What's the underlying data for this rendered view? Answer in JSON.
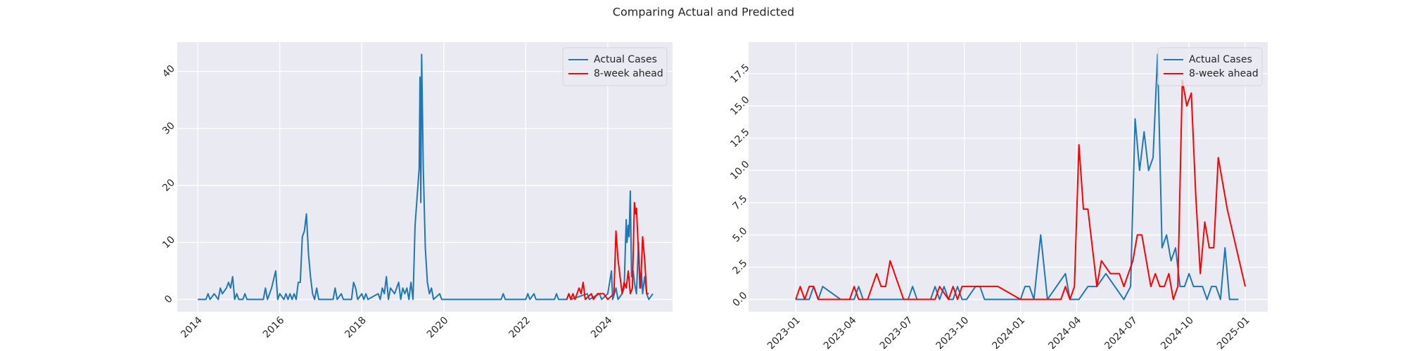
{
  "title": "Comparing Actual and Predicted",
  "chart_data": [
    {
      "type": "line",
      "xlim": [
        2013.5,
        2025.58
      ],
      "xticks": [
        2014,
        2016,
        2018,
        2020,
        2022,
        2024
      ],
      "ylim": [
        -2.15,
        45.15
      ],
      "yticks": [
        0,
        10,
        20,
        30,
        40
      ],
      "grid": true,
      "legend": "upper right",
      "series": [
        {
          "name": "Actual Cases",
          "color": "#1f77b4",
          "x": [
            2014.0,
            2014.2,
            2014.25,
            2014.3,
            2014.4,
            2014.5,
            2014.55,
            2014.6,
            2014.7,
            2014.75,
            2014.8,
            2014.85,
            2014.9,
            2014.95,
            2015.0,
            2015.1,
            2015.15,
            2015.2,
            2015.6,
            2015.65,
            2015.7,
            2015.75,
            2015.8,
            2015.9,
            2015.95,
            2016.0,
            2016.1,
            2016.15,
            2016.2,
            2016.25,
            2016.3,
            2016.35,
            2016.4,
            2016.45,
            2016.5,
            2016.55,
            2016.6,
            2016.65,
            2016.7,
            2016.75,
            2016.8,
            2016.85,
            2016.9,
            2016.95,
            2017.3,
            2017.35,
            2017.4,
            2017.5,
            2017.55,
            2017.75,
            2017.8,
            2017.85,
            2017.9,
            2018.0,
            2018.05,
            2018.1,
            2018.15,
            2018.4,
            2018.45,
            2018.5,
            2018.55,
            2018.6,
            2018.65,
            2018.7,
            2018.8,
            2018.9,
            2018.95,
            2019.0,
            2019.05,
            2019.1,
            2019.15,
            2019.2,
            2019.25,
            2019.3,
            2019.35,
            2019.4,
            2019.42,
            2019.44,
            2019.46,
            2019.5,
            2019.55,
            2019.6,
            2019.65,
            2019.7,
            2019.75,
            2019.9,
            2019.95,
            2021.4,
            2021.45,
            2021.5,
            2022.0,
            2022.05,
            2022.1,
            2022.2,
            2022.25,
            2022.7,
            2022.75,
            2022.8,
            2023.0,
            2023.05,
            2023.1,
            2023.5,
            2023.55,
            2023.8,
            2023.85,
            2024.0,
            2024.09,
            2024.12,
            2024.2,
            2024.25,
            2024.35,
            2024.4,
            2024.45,
            2024.47,
            2024.5,
            2024.52,
            2024.55,
            2024.58,
            2024.62,
            2024.65,
            2024.7,
            2024.75,
            2024.78,
            2024.82,
            2024.85,
            2024.9,
            2024.95,
            2025.0,
            2025.1
          ],
          "values": [
            0,
            0,
            1,
            0,
            1,
            0,
            2,
            1,
            2,
            3,
            2,
            4,
            0,
            1,
            0,
            0,
            1,
            0,
            0,
            2,
            0,
            1,
            2,
            5,
            0,
            1,
            0,
            1,
            0,
            1,
            0,
            1,
            0,
            3,
            3,
            11,
            12,
            15,
            8,
            4,
            1,
            0,
            2,
            0,
            0,
            2,
            0,
            1,
            0,
            0,
            3,
            2,
            0,
            1,
            0,
            1,
            0,
            1,
            0,
            2,
            1,
            4,
            0,
            2,
            1,
            3,
            0,
            2,
            1,
            2,
            0,
            3,
            0,
            13,
            18,
            23,
            39,
            17,
            43,
            23,
            9,
            3,
            1,
            2,
            0,
            1,
            0,
            0,
            1,
            0,
            0,
            1,
            0,
            1,
            0,
            0,
            1,
            0,
            0,
            1,
            0,
            1,
            0,
            1,
            0,
            1,
            5,
            0,
            2,
            0,
            1,
            2,
            14,
            10,
            13,
            11,
            19,
            4,
            5,
            3,
            1,
            10,
            2,
            5,
            1,
            4,
            1,
            0,
            1
          ]
        },
        {
          "name": "8-week ahead",
          "color": "#ff0000",
          "x": [
            2023.0,
            2023.05,
            2023.1,
            2023.15,
            2023.2,
            2023.25,
            2023.3,
            2023.35,
            2023.4,
            2023.45,
            2023.6,
            2023.65,
            2023.75,
            2023.9,
            2024.0,
            2024.15,
            2024.2,
            2024.25,
            2024.3,
            2024.35,
            2024.4,
            2024.45,
            2024.5,
            2024.55,
            2024.6,
            2024.65,
            2024.68,
            2024.7,
            2024.75,
            2024.8,
            2024.85,
            2024.9,
            2024.95,
            2025.0
          ],
          "values": [
            0,
            1,
            0,
            1,
            0,
            1,
            2,
            1,
            3,
            0,
            1,
            0,
            1,
            1,
            0,
            1,
            12,
            7,
            4,
            1,
            3,
            2,
            5,
            1,
            2,
            17,
            15,
            16,
            8,
            2,
            11,
            7,
            1,
            1
          ]
        }
      ]
    },
    {
      "type": "line",
      "xlim": [
        2022.79,
        2025.1
      ],
      "xticks": [
        {
          "value": 2023.0,
          "label": "2023-01"
        },
        {
          "value": 2023.25,
          "label": "2023-04"
        },
        {
          "value": 2023.5,
          "label": "2023-07"
        },
        {
          "value": 2023.75,
          "label": "2023-10"
        },
        {
          "value": 2024.0,
          "label": "2024-01"
        },
        {
          "value": 2024.25,
          "label": "2024-04"
        },
        {
          "value": 2024.5,
          "label": "2024-07"
        },
        {
          "value": 2024.75,
          "label": "2024-10"
        },
        {
          "value": 2025.0,
          "label": "2025-01"
        }
      ],
      "ylim": [
        -0.95,
        19.95
      ],
      "yticks": [
        {
          "value": 0,
          "label": "0.0"
        },
        2.5,
        {
          "value": 5,
          "label": "5.0"
        },
        7.5,
        {
          "value": 10,
          "label": "10.0"
        },
        12.5,
        {
          "value": 15,
          "label": "15.0"
        },
        17.5
      ],
      "grid": true,
      "legend": "upper right",
      "series": [
        {
          "name": "Actual Cases",
          "color": "#1f77b4",
          "x": [
            2023.0,
            2023.06,
            2023.08,
            2023.1,
            2023.12,
            2023.2,
            2023.26,
            2023.28,
            2023.3,
            2023.5,
            2023.52,
            2023.54,
            2023.6,
            2023.62,
            2023.64,
            2023.66,
            2023.68,
            2023.7,
            2023.72,
            2023.74,
            2023.76,
            2023.8,
            2023.82,
            2023.84,
            2023.9,
            2023.96,
            2024.0,
            2024.02,
            2024.04,
            2024.06,
            2024.09,
            2024.12,
            2024.16,
            2024.2,
            2024.22,
            2024.26,
            2024.3,
            2024.34,
            2024.38,
            2024.42,
            2024.46,
            2024.49,
            2024.51,
            2024.53,
            2024.55,
            2024.57,
            2024.59,
            2024.61,
            2024.63,
            2024.65,
            2024.67,
            2024.69,
            2024.71,
            2024.73,
            2024.75,
            2024.77,
            2024.81,
            2024.83,
            2024.85,
            2024.87,
            2024.89,
            2024.91,
            2024.93,
            2024.97
          ],
          "values": [
            0,
            0,
            1,
            0,
            1,
            0,
            0,
            1,
            0,
            0,
            1,
            0,
            0,
            1,
            0,
            1,
            0,
            0,
            1,
            0,
            0,
            1,
            1,
            0,
            0,
            0,
            0,
            1,
            1,
            0,
            5,
            0,
            1,
            2,
            0,
            0,
            1,
            1,
            2,
            1,
            0,
            1,
            14,
            10,
            13,
            10,
            11,
            19,
            4,
            5,
            3,
            4,
            1,
            1,
            2,
            1,
            1,
            0,
            1,
            1,
            0,
            4,
            0,
            0
          ]
        },
        {
          "name": "8-week ahead",
          "color": "#ff0000",
          "x": [
            2023.0,
            2023.02,
            2023.04,
            2023.06,
            2023.08,
            2023.1,
            2023.24,
            2023.26,
            2023.28,
            2023.32,
            2023.36,
            2023.38,
            2023.4,
            2023.42,
            2023.44,
            2023.48,
            2023.62,
            2023.64,
            2023.68,
            2023.7,
            2023.72,
            2023.74,
            2023.76,
            2023.82,
            2023.9,
            2024.0,
            2024.18,
            2024.2,
            2024.22,
            2024.24,
            2024.26,
            2024.28,
            2024.3,
            2024.32,
            2024.34,
            2024.36,
            2024.4,
            2024.42,
            2024.44,
            2024.46,
            2024.48,
            2024.5,
            2024.52,
            2024.54,
            2024.56,
            2024.58,
            2024.6,
            2024.62,
            2024.64,
            2024.66,
            2024.68,
            2024.7,
            2024.72,
            2024.74,
            2024.76,
            2024.78,
            2024.8,
            2024.82,
            2024.84,
            2024.86,
            2024.88,
            2024.9,
            2024.92,
            2025.0
          ],
          "values": [
            0,
            1,
            0,
            1,
            1,
            0,
            0,
            1,
            0,
            0,
            2,
            1,
            1,
            3,
            2,
            0,
            0,
            1,
            0,
            1,
            0,
            1,
            1,
            1,
            1,
            0,
            0,
            1,
            0,
            1,
            12,
            7,
            7,
            4,
            1,
            3,
            2,
            2,
            2,
            1,
            2,
            3,
            5,
            5,
            3,
            1,
            2,
            1,
            1,
            2,
            0,
            1,
            17,
            15,
            16,
            8,
            2,
            6,
            4,
            4,
            11,
            9,
            7,
            1
          ]
        }
      ]
    }
  ]
}
